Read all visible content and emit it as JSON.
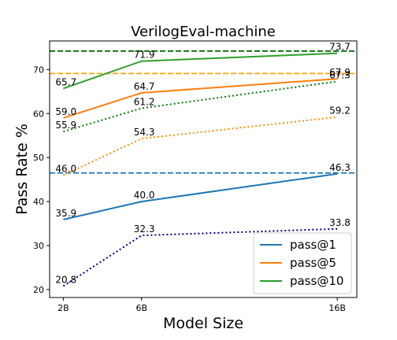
{
  "chart_data": {
    "type": "line",
    "title": "VerilogEval-machine",
    "xlabel": "Model Size",
    "ylabel": "Pass Rate %",
    "categories": [
      "2B",
      "6B",
      "16B"
    ],
    "x": [
      2,
      6,
      16
    ],
    "xlim": [
      1.3,
      17.0
    ],
    "ylim": [
      18.2,
      76.5
    ],
    "yticks": [
      20,
      30,
      40,
      50,
      60,
      70
    ],
    "grid": false,
    "legend_position": "bottom-right",
    "series": [
      {
        "name": "pass@1",
        "color": "#1f77b4",
        "style": "solid",
        "values": [
          35.9,
          40.0,
          46.3
        ],
        "labels": [
          "35.9",
          "40.0",
          "46.3"
        ],
        "in_legend": true
      },
      {
        "name": "pass@5",
        "color": "#ff7f0e",
        "style": "solid",
        "values": [
          59.0,
          64.7,
          67.9
        ],
        "labels": [
          "59.0",
          "64.7",
          "67.9"
        ],
        "in_legend": true
      },
      {
        "name": "pass@10",
        "color": "#2ca02c",
        "style": "solid",
        "values": [
          65.7,
          71.9,
          73.7
        ],
        "labels": [
          "65.7",
          "71.9",
          "73.7"
        ],
        "in_legend": true
      },
      {
        "color": "#00008b",
        "style": "dotted",
        "values": [
          20.8,
          32.3,
          33.8
        ],
        "labels": [
          "20.8",
          "32.3",
          "33.8"
        ],
        "in_legend": false
      },
      {
        "color": "#ff8c00",
        "style": "dotted",
        "values": [
          46.0,
          54.3,
          59.2
        ],
        "labels": [
          "46.0",
          "54.3",
          "59.2"
        ],
        "in_legend": false
      },
      {
        "color": "#008000",
        "style": "dotted",
        "values": [
          55.9,
          61.2,
          67.3
        ],
        "labels": [
          "55.9",
          "61.2",
          "67.3"
        ],
        "in_legend": false
      }
    ],
    "reference_lines": [
      {
        "y": 46.5,
        "color": "#1f77b4",
        "style": "dashed"
      },
      {
        "y": 69.1,
        "color": "#ffa500",
        "style": "dashed"
      },
      {
        "y": 74.2,
        "color": "#006400",
        "style": "dashed"
      }
    ]
  }
}
